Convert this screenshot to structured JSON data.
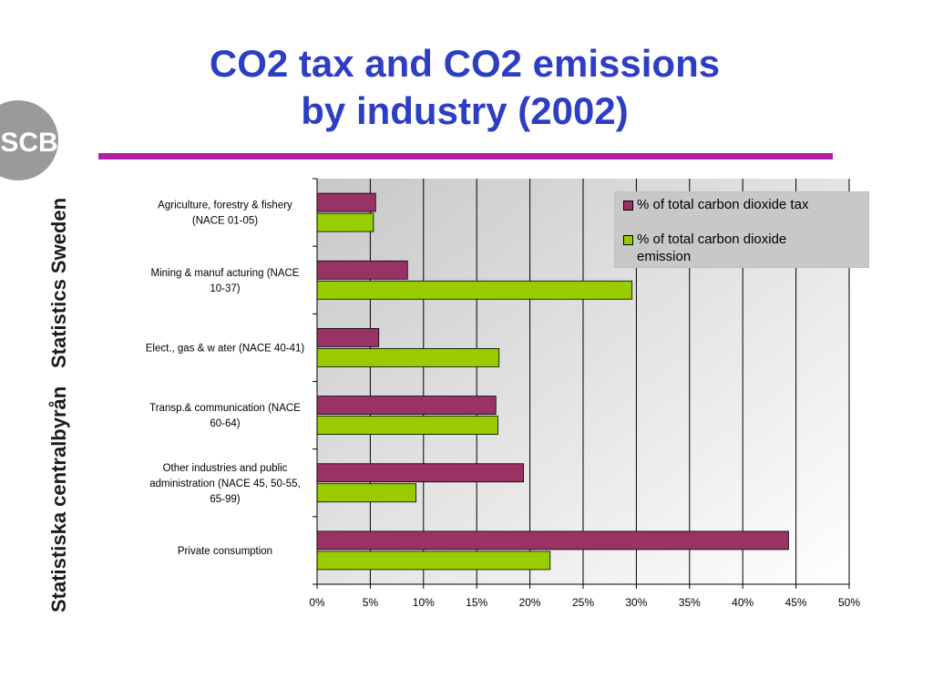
{
  "slide": {
    "title_line1": "CO2 tax and CO2 emissions",
    "title_line2": "by industry (2002)",
    "side_text_en": "Statistics Sweden",
    "side_text_sv": "Statistiska centralbyrån",
    "logo_text": "SCB",
    "title_color": "#2e3ec4",
    "rule_color": "#b01fa6"
  },
  "chart_data": {
    "type": "bar",
    "orientation": "horizontal",
    "categories": [
      "Agriculture, forestry & fishery (NACE 01-05)",
      "Mining & manufacturing (NACE 10-37)",
      "Elect., gas & w ater (NACE 40-41)",
      "Transp.& communication (NACE 60-64)",
      "Other industries and public administration (NACE 45, 50-55, 65-99)",
      "Private consumption"
    ],
    "category_label_lines": [
      [
        "Agriculture, forestry & fishery",
        "(NACE 01-05)"
      ],
      [
        "Mining & manuf acturing (NACE",
        "10-37)"
      ],
      [
        "Elect., gas & w ater (NACE 40-41)"
      ],
      [
        "Transp.& communication (NACE",
        "60-64)"
      ],
      [
        "Other industries and public",
        "administration (NACE 45, 50-55,",
        "65-99)"
      ],
      [
        "Private consumption"
      ]
    ],
    "series": [
      {
        "name": "% of total carbon dioxide tax",
        "legend_lines": [
          "% of total carbon dioxide tax"
        ],
        "color": "#993366",
        "values": [
          5.5,
          8.5,
          5.8,
          16.8,
          19.4,
          44.3
        ]
      },
      {
        "name": "% of total carbon dioxide emission",
        "legend_lines": [
          "% of total carbon dioxide",
          "emission"
        ],
        "color": "#99cc00",
        "values": [
          5.3,
          29.6,
          17.1,
          17.0,
          9.3,
          21.9
        ]
      }
    ],
    "x_ticks": [
      "0%",
      "5%",
      "10%",
      "15%",
      "20%",
      "25%",
      "30%",
      "35%",
      "40%",
      "45%",
      "50%"
    ],
    "xlim": [
      0,
      50
    ],
    "grid": true,
    "legend_position": "top-right"
  }
}
